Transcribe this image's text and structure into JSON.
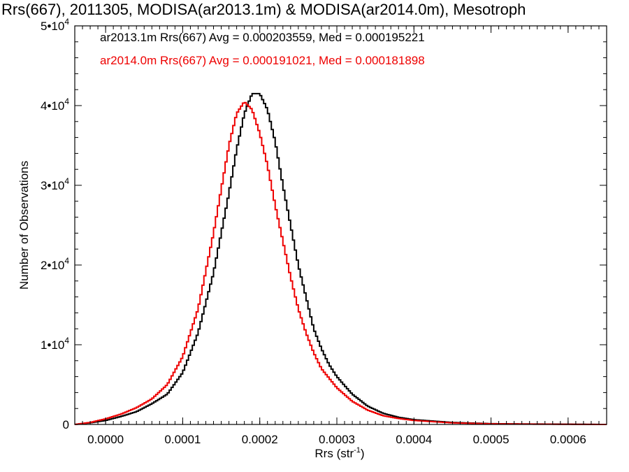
{
  "chart_data": {
    "type": "line",
    "step": true,
    "title": "Rrs(667), 2011305, MODISA(ar2013.1m) & MODISA(ar2014.0m), Mesotroph",
    "xlabel": "Rrs (str",
    "xlabel_sup": "-1",
    "xlabel_end": ")",
    "ylabel": "Number of Observations",
    "xlim": [
      -4e-05,
      0.00065
    ],
    "ylim": [
      0,
      50000
    ],
    "x_ticks": [
      {
        "value": 0.0,
        "label": "0.0000"
      },
      {
        "value": 0.0001,
        "label": "0.0001"
      },
      {
        "value": 0.0002,
        "label": "0.0002"
      },
      {
        "value": 0.0003,
        "label": "0.0003"
      },
      {
        "value": 0.0004,
        "label": "0.0004"
      },
      {
        "value": 0.0005,
        "label": "0.0005"
      },
      {
        "value": 0.0006,
        "label": "0.0006"
      }
    ],
    "y_ticks": [
      {
        "value": 0,
        "label": "0",
        "exp": ""
      },
      {
        "value": 10000,
        "label": "1•10",
        "exp": "4"
      },
      {
        "value": 20000,
        "label": "2•10",
        "exp": "4"
      },
      {
        "value": 30000,
        "label": "3•10",
        "exp": "4"
      },
      {
        "value": 40000,
        "label": "4•10",
        "exp": "4"
      },
      {
        "value": 50000,
        "label": "5•10",
        "exp": "4"
      }
    ],
    "legend_position": "top-left",
    "series": [
      {
        "legend": "ar2013.1m Rrs(667) Avg = 0.000203559, Med = 0.000195221",
        "color": "#000000",
        "points": [
          [
            -4e-05,
            0
          ],
          [
            -2e-05,
            200
          ],
          [
            0.0,
            500
          ],
          [
            2e-05,
            1000
          ],
          [
            4e-05,
            1600
          ],
          [
            6e-05,
            2600
          ],
          [
            8e-05,
            3800
          ],
          [
            0.0001,
            6500
          ],
          [
            0.00012,
            11500
          ],
          [
            0.00014,
            19000
          ],
          [
            0.00016,
            29000
          ],
          [
            0.00017,
            34500
          ],
          [
            0.00018,
            39000
          ],
          [
            0.00019,
            41500
          ],
          [
            0.0002,
            41500
          ],
          [
            0.00021,
            39500
          ],
          [
            0.00022,
            35500
          ],
          [
            0.00023,
            30000
          ],
          [
            0.00024,
            25000
          ],
          [
            0.00025,
            20000
          ],
          [
            0.00026,
            16000
          ],
          [
            0.00027,
            12000
          ],
          [
            0.00028,
            9500
          ],
          [
            0.00029,
            7500
          ],
          [
            0.0003,
            6000
          ],
          [
            0.00032,
            3800
          ],
          [
            0.00034,
            2300
          ],
          [
            0.00036,
            1400
          ],
          [
            0.00038,
            900
          ],
          [
            0.0004,
            600
          ],
          [
            0.00045,
            250
          ],
          [
            0.0005,
            100
          ],
          [
            0.00055,
            60
          ],
          [
            0.0006,
            30
          ],
          [
            0.00065,
            0
          ]
        ]
      },
      {
        "legend": "ar2014.0m Rrs(667) Avg = 0.000191021, Med = 0.000181898",
        "color": "#ee0000",
        "points": [
          [
            -4e-05,
            0
          ],
          [
            -2e-05,
            250
          ],
          [
            0.0,
            700
          ],
          [
            2e-05,
            1300
          ],
          [
            4e-05,
            2100
          ],
          [
            6e-05,
            3200
          ],
          [
            8e-05,
            5000
          ],
          [
            0.0001,
            8500
          ],
          [
            0.00012,
            14500
          ],
          [
            0.00014,
            24000
          ],
          [
            0.00015,
            29500
          ],
          [
            0.00016,
            35000
          ],
          [
            0.00017,
            39000
          ],
          [
            0.00018,
            40500
          ],
          [
            0.00019,
            39500
          ],
          [
            0.0002,
            36500
          ],
          [
            0.00021,
            32500
          ],
          [
            0.00022,
            27500
          ],
          [
            0.00023,
            23000
          ],
          [
            0.00024,
            18500
          ],
          [
            0.00025,
            14500
          ],
          [
            0.00026,
            11500
          ],
          [
            0.00027,
            9000
          ],
          [
            0.00028,
            7000
          ],
          [
            0.0003,
            4600
          ],
          [
            0.00032,
            2900
          ],
          [
            0.00034,
            1800
          ],
          [
            0.00036,
            1100
          ],
          [
            0.00038,
            750
          ],
          [
            0.0004,
            500
          ],
          [
            0.00045,
            200
          ],
          [
            0.0005,
            80
          ],
          [
            0.00055,
            40
          ],
          [
            0.0006,
            20
          ],
          [
            0.00065,
            0
          ]
        ]
      }
    ]
  }
}
